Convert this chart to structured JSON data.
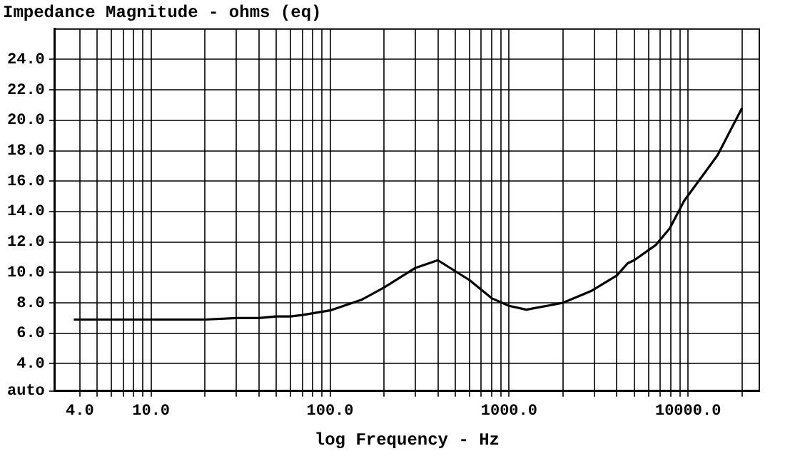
{
  "chart_data": {
    "type": "line",
    "title": "Impedance Magnitude - ohms (eq)",
    "xlabel": "log Frequency - Hz",
    "log": "x",
    "grid": true,
    "legend": false,
    "marker": "none",
    "line_style": "solid",
    "xlim": [
      2.9,
      25000
    ],
    "ylim": [
      2.2,
      26
    ],
    "xticks": [
      {
        "value": 4,
        "label": "4.0"
      },
      {
        "value": 5,
        "label": null
      },
      {
        "value": 6,
        "label": null
      },
      {
        "value": 7,
        "label": null
      },
      {
        "value": 8,
        "label": null
      },
      {
        "value": 9,
        "label": null
      },
      {
        "value": 10,
        "label": "10.0"
      },
      {
        "value": 20,
        "label": null
      },
      {
        "value": 30,
        "label": null
      },
      {
        "value": 40,
        "label": null
      },
      {
        "value": 50,
        "label": null
      },
      {
        "value": 60,
        "label": null
      },
      {
        "value": 70,
        "label": null
      },
      {
        "value": 80,
        "label": null
      },
      {
        "value": 90,
        "label": null
      },
      {
        "value": 100,
        "label": "100.0"
      },
      {
        "value": 200,
        "label": null
      },
      {
        "value": 300,
        "label": null
      },
      {
        "value": 400,
        "label": null
      },
      {
        "value": 500,
        "label": null
      },
      {
        "value": 600,
        "label": null
      },
      {
        "value": 700,
        "label": null
      },
      {
        "value": 800,
        "label": null
      },
      {
        "value": 900,
        "label": null
      },
      {
        "value": 1000,
        "label": "1000.0"
      },
      {
        "value": 2000,
        "label": null
      },
      {
        "value": 3000,
        "label": null
      },
      {
        "value": 4000,
        "label": null
      },
      {
        "value": 5000,
        "label": null
      },
      {
        "value": 6000,
        "label": null
      },
      {
        "value": 7000,
        "label": null
      },
      {
        "value": 8000,
        "label": null
      },
      {
        "value": 9000,
        "label": null
      },
      {
        "value": 10000,
        "label": "10000.0"
      },
      {
        "value": 20000,
        "label": null
      }
    ],
    "yticks": [
      {
        "value": 2.2,
        "label": "auto"
      },
      {
        "value": 4,
        "label": "4.0"
      },
      {
        "value": 6,
        "label": "6.0"
      },
      {
        "value": 8,
        "label": "8.0"
      },
      {
        "value": 10,
        "label": "10.0"
      },
      {
        "value": 12,
        "label": "12.0"
      },
      {
        "value": 14,
        "label": "14.0"
      },
      {
        "value": 16,
        "label": "16.0"
      },
      {
        "value": 18,
        "label": "18.0"
      },
      {
        "value": 20,
        "label": "20.0"
      },
      {
        "value": 22,
        "label": "22.0"
      },
      {
        "value": 24,
        "label": "24.0"
      }
    ],
    "x": [
      3.7,
      5,
      10,
      20,
      30,
      40,
      50,
      60,
      70,
      100,
      150,
      200,
      300,
      400,
      600,
      800,
      1000,
      1250,
      2000,
      2900,
      4000,
      4600,
      5000,
      6600,
      7900,
      9500,
      14600,
      20000
    ],
    "series": [
      {
        "color": "#000000",
        "values": [
          6.9,
          6.9,
          6.9,
          6.9,
          7.0,
          7.0,
          7.1,
          7.1,
          7.2,
          7.5,
          8.2,
          9.0,
          10.3,
          10.8,
          9.5,
          8.3,
          7.8,
          7.55,
          8.0,
          8.8,
          9.8,
          10.6,
          10.8,
          11.8,
          12.9,
          14.7,
          17.7,
          20.8
        ]
      }
    ]
  }
}
